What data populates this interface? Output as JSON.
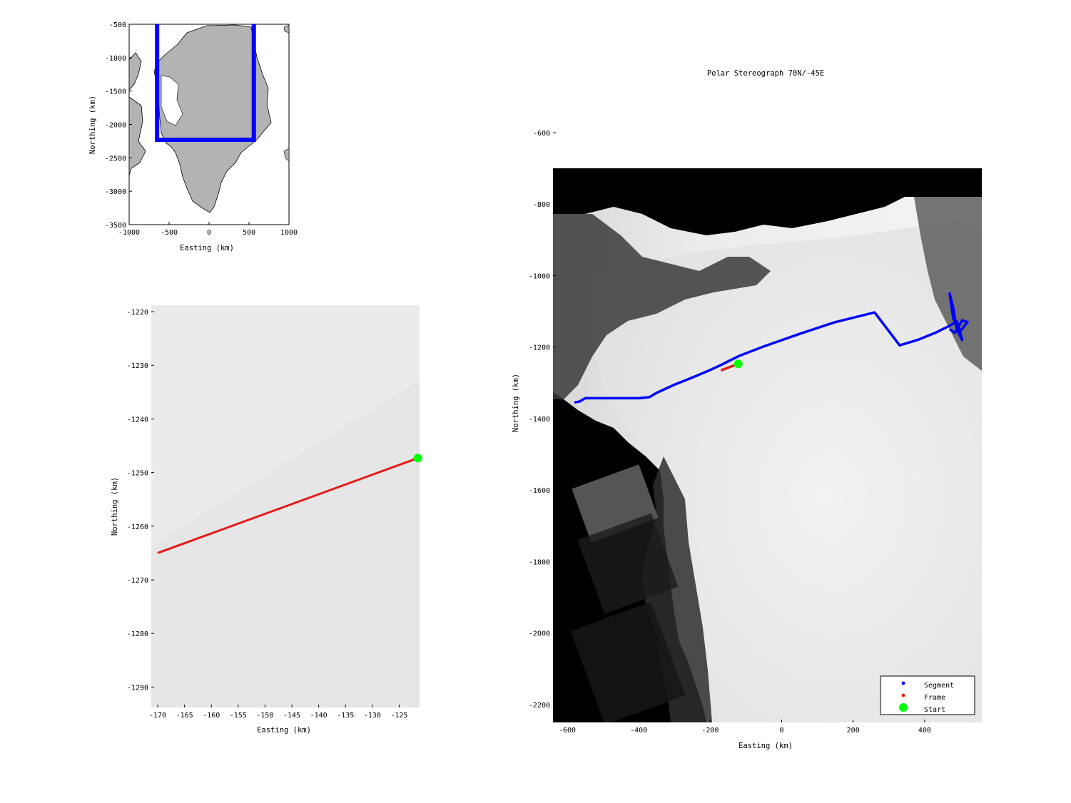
{
  "chart_data": [
    {
      "id": "overview",
      "type": "scatter",
      "xlabel": "Easting (km)",
      "ylabel": "Northing (km)",
      "xlim": [
        -1000,
        1000
      ],
      "ylim": [
        -3500,
        -500
      ],
      "xticks": [
        "-1000",
        "-500",
        "0",
        "500",
        "1000"
      ],
      "yticks": [
        "-500",
        "-1000",
        "-1500",
        "-2000",
        "-2500",
        "-3000",
        "-3500"
      ],
      "xtick_values": [
        -1000,
        -500,
        0,
        500,
        1000
      ],
      "ytick_values": [
        -500,
        -1000,
        -1500,
        -2000,
        -2500,
        -3000,
        -3500
      ],
      "land_color": "#b3b3b3",
      "box_color": "#0000ff",
      "region_box": {
        "x": [
          -650,
          560
        ],
        "y": [
          -2230,
          -500
        ]
      }
    },
    {
      "id": "frame_zoom",
      "type": "line",
      "xlabel": "Easting (km)",
      "ylabel": "Northing (km)",
      "xlim": [
        -171.2,
        -121.2
      ],
      "ylim": [
        -1293.8,
        -1218.8
      ],
      "xticks": [
        "-170",
        "-165",
        "-160",
        "-155",
        "-150",
        "-145",
        "-140",
        "-135",
        "-130",
        "-125"
      ],
      "yticks": [
        "-1220",
        "-1230",
        "-1240",
        "-1250",
        "-1260",
        "-1270",
        "-1280",
        "-1290"
      ],
      "xtick_values": [
        -170,
        -165,
        -160,
        -155,
        -150,
        -145,
        -140,
        -135,
        -130,
        -125
      ],
      "ytick_values": [
        -1220,
        -1230,
        -1240,
        -1250,
        -1260,
        -1270,
        -1280,
        -1290
      ],
      "series": [
        {
          "name": "Frame",
          "color": "#ff0000",
          "x": [
            -170,
            -121.5
          ],
          "y": [
            -1265.0,
            -1247.3
          ]
        },
        {
          "name": "Start",
          "color": "#00ff00",
          "x": [
            -121.5
          ],
          "y": [
            -1247.3
          ]
        }
      ]
    },
    {
      "id": "flight_map",
      "type": "line",
      "title": "Polar Stereograph 70N/-45E",
      "xlabel": "Easting (km)",
      "ylabel": "Northing (km)",
      "xlim": [
        -640,
        560
      ],
      "ylim": [
        -2250,
        -600
      ],
      "image_top": -700,
      "xticks": [
        "-600",
        "-400",
        "-200",
        "0",
        "200",
        "400"
      ],
      "yticks": [
        "-600",
        "-800",
        "-1000",
        "-1200",
        "-1400",
        "-1600",
        "-1800",
        "-2000",
        "-2200"
      ],
      "xtick_values": [
        -600,
        -400,
        -200,
        0,
        200,
        400
      ],
      "ytick_values": [
        -600,
        -800,
        -1000,
        -1200,
        -1400,
        -1600,
        -1800,
        -2000,
        -2200
      ],
      "series": [
        {
          "name": "Segment",
          "color": "#0000ff",
          "x": [
            -580,
            -565,
            -550,
            -500,
            -400,
            -370,
            -350,
            -300,
            -250,
            -200,
            -170,
            -120,
            -50,
            50,
            150,
            260,
            330,
            380,
            430,
            470,
            490,
            500,
            505,
            490,
            480,
            470,
            480,
            500,
            520,
            505,
            485,
            470
          ],
          "y": [
            -1355,
            -1352,
            -1343,
            -1343,
            -1343,
            -1340,
            -1328,
            -1305,
            -1285,
            -1264,
            -1250,
            -1225,
            -1198,
            -1163,
            -1130,
            -1103,
            -1195,
            -1180,
            -1160,
            -1140,
            -1128,
            -1160,
            -1180,
            -1150,
            -1090,
            -1050,
            -1120,
            -1155,
            -1130,
            -1125,
            -1160,
            -1150
          ]
        },
        {
          "name": "Frame",
          "color": "#ff0000",
          "x": [
            -170,
            -121.5
          ],
          "y": [
            -1265,
            -1247
          ]
        },
        {
          "name": "Start",
          "color": "#00ff00",
          "x": [
            -121.5
          ],
          "y": [
            -1247
          ]
        }
      ],
      "legend": {
        "position": "bottom-right",
        "entries": [
          "Segment",
          "Frame",
          "Start"
        ]
      }
    }
  ]
}
